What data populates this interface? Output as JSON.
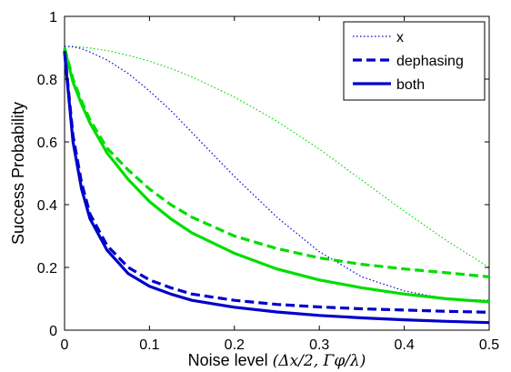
{
  "chart_data": {
    "type": "line",
    "xlabel": "Noise level",
    "xlabel_math": "(Δx/2, Γφ/λ)",
    "ylabel": "Success Probability",
    "xlim": [
      0,
      0.5
    ],
    "ylim": [
      0,
      1
    ],
    "x_ticks": [
      "0",
      "0.1",
      "0.2",
      "0.3",
      "0.4",
      "0.5"
    ],
    "y_ticks": [
      "0",
      "0.2",
      "0.4",
      "0.6",
      "0.8",
      "1"
    ],
    "grid": false,
    "legend_position": "top-right",
    "legend": [
      {
        "label": "x",
        "style": "dotted"
      },
      {
        "label": "dephasing",
        "style": "dashed"
      },
      {
        "label": "both",
        "style": "solid"
      }
    ],
    "x": [
      0,
      0.01,
      0.02,
      0.03,
      0.05,
      0.075,
      0.1,
      0.125,
      0.15,
      0.2,
      0.25,
      0.3,
      0.35,
      0.4,
      0.45,
      0.5
    ],
    "series": [
      {
        "color": "#00dd00",
        "style": "dotted",
        "values": [
          0.905,
          0.904,
          0.902,
          0.899,
          0.891,
          0.876,
          0.857,
          0.834,
          0.807,
          0.743,
          0.666,
          0.577,
          0.478,
          0.379,
          0.285,
          0.2
        ]
      },
      {
        "color": "#0000cc",
        "style": "dotted",
        "values": [
          0.905,
          0.903,
          0.897,
          0.886,
          0.861,
          0.818,
          0.762,
          0.7,
          0.63,
          0.49,
          0.36,
          0.25,
          0.17,
          0.125,
          0.1,
          0.095
        ]
      },
      {
        "color": "#00dd00",
        "style": "dashed",
        "values": [
          0.9,
          0.8,
          0.73,
          0.67,
          0.58,
          0.51,
          0.45,
          0.4,
          0.36,
          0.3,
          0.26,
          0.23,
          0.21,
          0.195,
          0.183,
          0.17
        ]
      },
      {
        "color": "#00dd00",
        "style": "solid",
        "values": [
          0.895,
          0.79,
          0.72,
          0.66,
          0.565,
          0.48,
          0.41,
          0.355,
          0.31,
          0.245,
          0.195,
          0.16,
          0.135,
          0.115,
          0.1,
          0.09
        ]
      },
      {
        "color": "#0000cc",
        "style": "dashed",
        "values": [
          0.89,
          0.62,
          0.47,
          0.37,
          0.27,
          0.2,
          0.16,
          0.135,
          0.115,
          0.095,
          0.082,
          0.074,
          0.068,
          0.064,
          0.06,
          0.057
        ]
      },
      {
        "color": "#0000cc",
        "style": "solid",
        "values": [
          0.885,
          0.6,
          0.45,
          0.355,
          0.255,
          0.18,
          0.14,
          0.115,
          0.095,
          0.073,
          0.058,
          0.047,
          0.039,
          0.033,
          0.028,
          0.024
        ]
      }
    ]
  }
}
